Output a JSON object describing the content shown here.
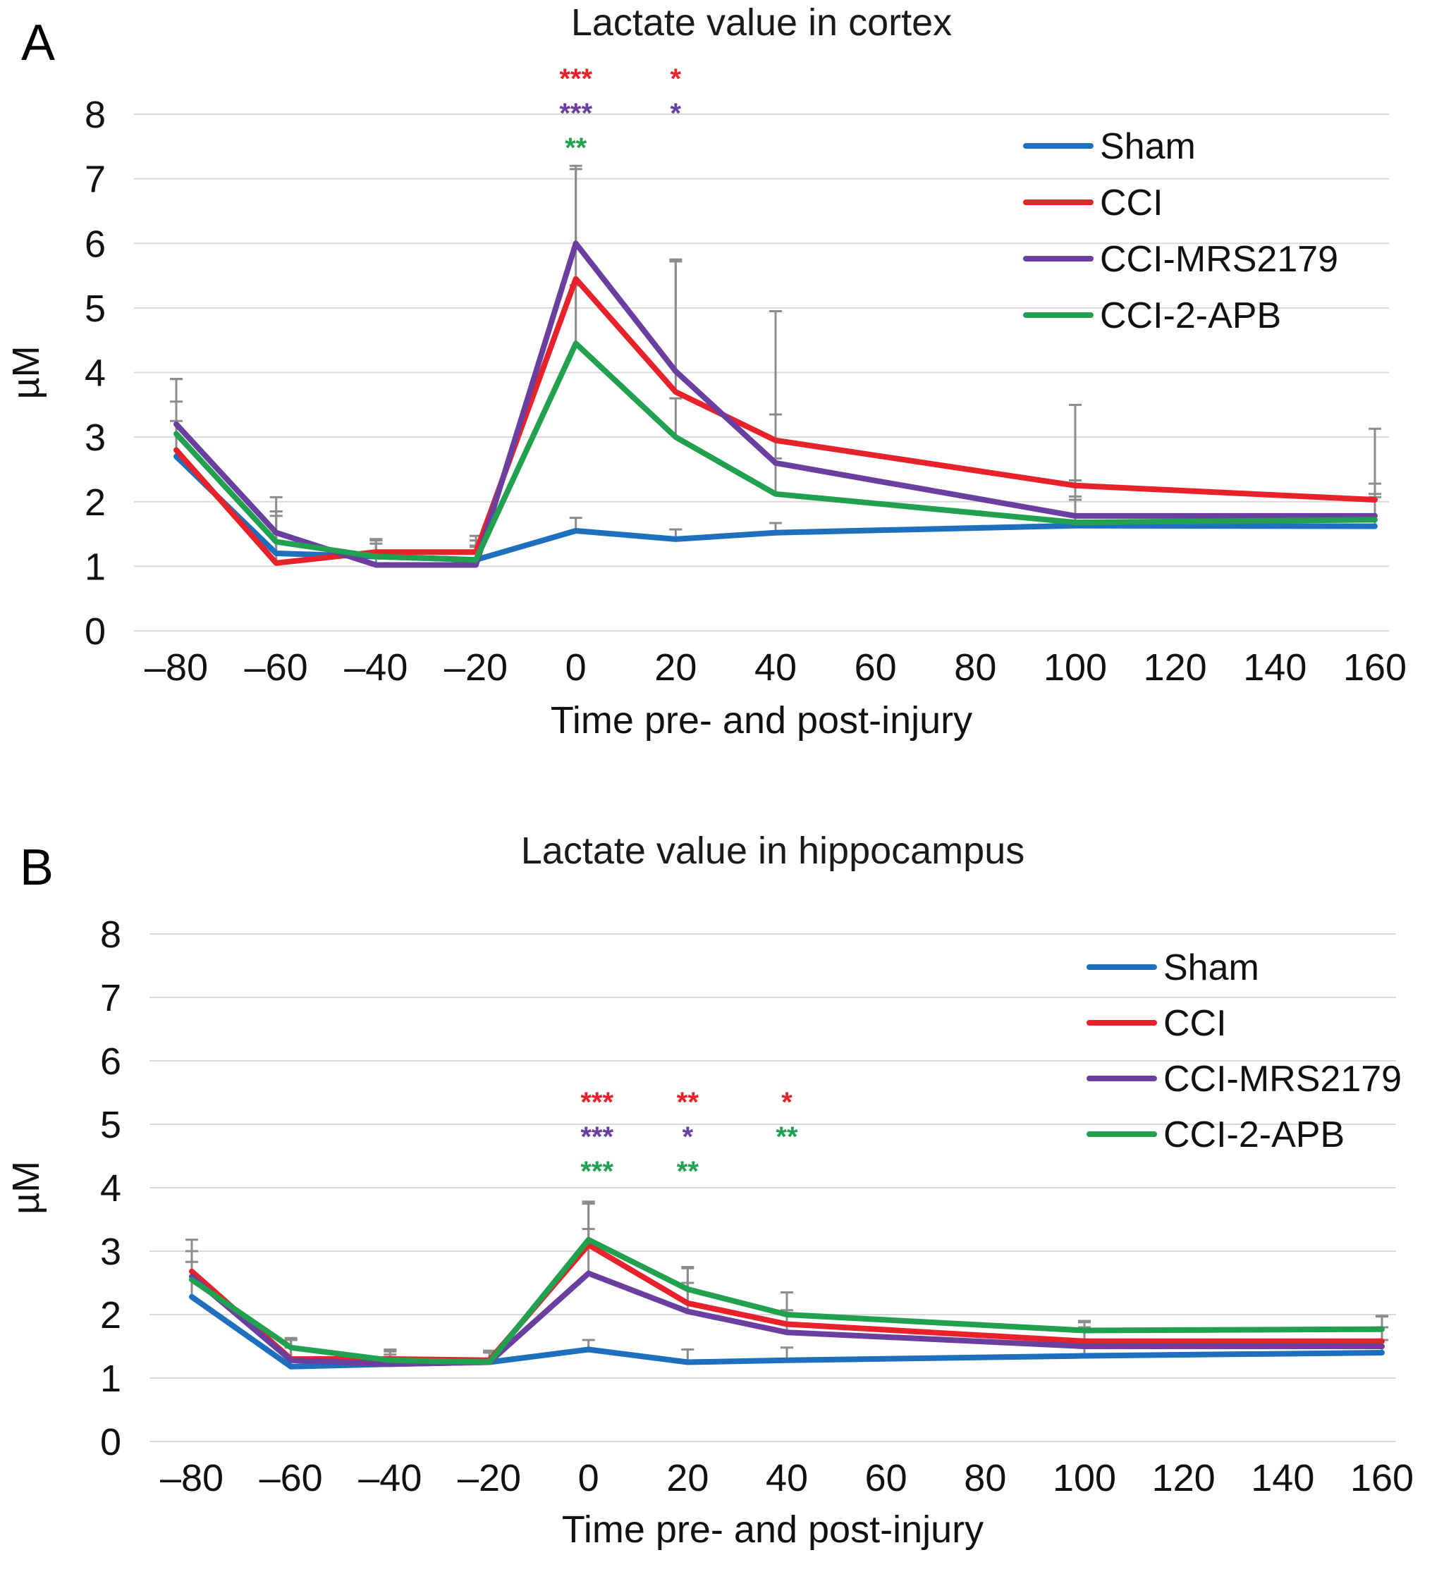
{
  "chart_data": [
    {
      "panel": "A",
      "type": "line",
      "title": "Lactate value in cortex",
      "xlabel": "Time pre- and post-injury",
      "ylabel": "µM",
      "ylim": [
        0,
        8
      ],
      "yticks": [
        "0",
        "1",
        "2",
        "3",
        "4",
        "5",
        "6",
        "7",
        "8"
      ],
      "xlim": [
        -80,
        160
      ],
      "xticks": [
        {
          "v": -80,
          "label": "–80"
        },
        {
          "v": -60,
          "label": "–60"
        },
        {
          "v": -40,
          "label": "–40"
        },
        {
          "v": -20,
          "label": "–20"
        },
        {
          "v": 0,
          "label": "0"
        },
        {
          "v": 20,
          "label": "20"
        },
        {
          "v": 40,
          "label": "40"
        },
        {
          "v": 60,
          "label": "60"
        },
        {
          "v": 80,
          "label": "80"
        },
        {
          "v": 100,
          "label": "100"
        },
        {
          "v": 120,
          "label": "120"
        },
        {
          "v": 140,
          "label": "140"
        },
        {
          "v": 160,
          "label": "160"
        }
      ],
      "x": [
        -80,
        -60,
        -40,
        -20,
        0,
        20,
        40,
        100,
        160
      ],
      "series": [
        {
          "name": "Sham",
          "color": "#1f6fbf",
          "values": [
            2.7,
            1.2,
            1.15,
            1.1,
            1.55,
            1.42,
            1.52,
            1.63,
            1.62
          ],
          "err": [
            0.55,
            0.3,
            0.25,
            0.3,
            0.2,
            0.15,
            0.15,
            0.4,
            0.45
          ]
        },
        {
          "name": "CCI",
          "color": "#e8222a",
          "values": [
            2.8,
            1.05,
            1.22,
            1.22,
            5.45,
            3.7,
            2.95,
            2.25,
            2.03
          ],
          "err": [
            1.1,
            0.8,
            0.2,
            0.25,
            1.75,
            2.05,
            2.0,
            1.25,
            1.1
          ]
        },
        {
          "name": "CCI-MRS2179",
          "color": "#6a3fa0",
          "values": [
            3.2,
            1.52,
            1.02,
            1.02,
            6.0,
            4.02,
            2.6,
            1.78,
            1.78
          ],
          "err": [
            0.7,
            0.55,
            0.4,
            0.3,
            1.15,
            1.7,
            0.75,
            0.55,
            0.5
          ]
        },
        {
          "name": "CCI-2-APB",
          "color": "#21a150",
          "values": [
            3.05,
            1.38,
            1.15,
            1.1,
            4.45,
            3.0,
            2.12,
            1.68,
            1.72
          ],
          "err": [
            0.5,
            0.4,
            0.2,
            0.2,
            0.9,
            0.6,
            0.55,
            0.4,
            0.4
          ]
        }
      ],
      "significance": [
        {
          "x": 0,
          "lines": [
            {
              "text": "***",
              "color": "#e8222a"
            },
            {
              "text": "***",
              "color": "#6a3fa0"
            },
            {
              "text": "**",
              "color": "#21a150"
            }
          ]
        },
        {
          "x": 20,
          "lines": [
            {
              "text": "*",
              "color": "#e8222a"
            },
            {
              "text": "*",
              "color": "#6a3fa0"
            }
          ]
        }
      ]
    },
    {
      "panel": "B",
      "type": "line",
      "title": "Lactate value in hippocampus",
      "xlabel": "Time pre- and post-injury",
      "ylabel": "µM",
      "ylim": [
        0,
        8
      ],
      "yticks": [
        "0",
        "1",
        "2",
        "3",
        "4",
        "5",
        "6",
        "7",
        "8"
      ],
      "xlim": [
        -80,
        160
      ],
      "xticks": [
        {
          "v": -80,
          "label": "–80"
        },
        {
          "v": -60,
          "label": "–60"
        },
        {
          "v": -40,
          "label": "–40"
        },
        {
          "v": -20,
          "label": "–20"
        },
        {
          "v": 0,
          "label": "0"
        },
        {
          "v": 20,
          "label": "20"
        },
        {
          "v": 40,
          "label": "40"
        },
        {
          "v": 60,
          "label": "60"
        },
        {
          "v": 80,
          "label": "80"
        },
        {
          "v": 100,
          "label": "100"
        },
        {
          "v": 120,
          "label": "120"
        },
        {
          "v": 140,
          "label": "140"
        },
        {
          "v": 160,
          "label": "160"
        }
      ],
      "x": [
        -80,
        -60,
        -40,
        -20,
        0,
        20,
        40,
        100,
        160
      ],
      "series": [
        {
          "name": "Sham",
          "color": "#1f6fbf",
          "values": [
            2.28,
            1.18,
            1.22,
            1.25,
            1.45,
            1.25,
            1.28,
            1.35,
            1.4
          ],
          "err": [
            0.55,
            0.3,
            0.2,
            0.15,
            0.15,
            0.2,
            0.2,
            0.2,
            0.2
          ]
        },
        {
          "name": "CCI",
          "color": "#e8222a",
          "values": [
            2.68,
            1.3,
            1.3,
            1.28,
            3.1,
            2.18,
            1.85,
            1.58,
            1.58
          ],
          "err": [
            0.5,
            0.3,
            0.15,
            0.15,
            0.65,
            0.55,
            0.5,
            0.3,
            0.4
          ]
        },
        {
          "name": "CCI-MRS2179",
          "color": "#6a3fa0",
          "values": [
            2.6,
            1.28,
            1.22,
            1.25,
            2.65,
            2.05,
            1.72,
            1.5,
            1.5
          ],
          "err": [
            0.4,
            0.2,
            0.15,
            0.15,
            0.7,
            0.45,
            0.35,
            0.3,
            0.3
          ]
        },
        {
          "name": "CCI-2-APB",
          "color": "#21a150",
          "values": [
            2.55,
            1.48,
            1.28,
            1.25,
            3.18,
            2.4,
            2.0,
            1.75,
            1.77
          ],
          "err": [
            0.45,
            0.15,
            0.15,
            0.15,
            0.6,
            0.35,
            0.35,
            0.15,
            0.2
          ]
        }
      ],
      "significance": [
        {
          "x": 0,
          "lines": [
            {
              "text": "***",
              "color": "#e8222a"
            },
            {
              "text": "***",
              "color": "#6a3fa0"
            },
            {
              "text": "***",
              "color": "#21a150"
            }
          ]
        },
        {
          "x": 20,
          "lines": [
            {
              "text": "**",
              "color": "#e8222a"
            },
            {
              "text": "*",
              "color": "#6a3fa0"
            },
            {
              "text": "**",
              "color": "#21a150"
            }
          ]
        },
        {
          "x": 40,
          "lines": [
            {
              "text": "*",
              "color": "#e8222a"
            },
            {
              "text": "**",
              "color": "#21a150"
            }
          ]
        }
      ]
    }
  ]
}
